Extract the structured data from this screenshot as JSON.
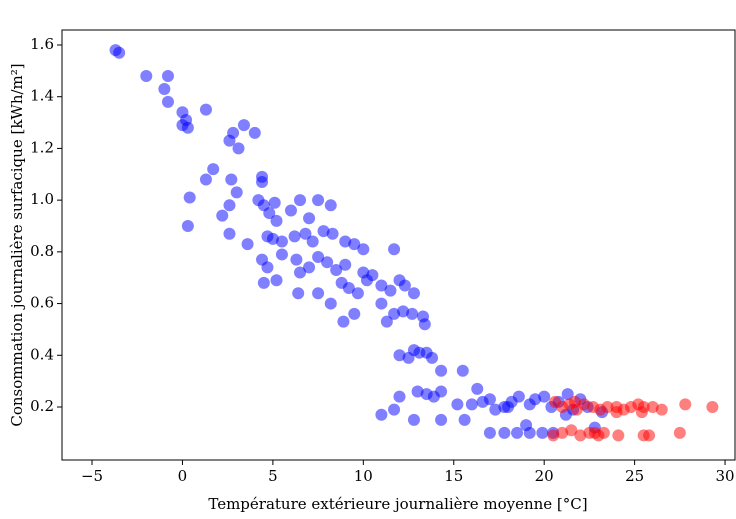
{
  "chart_data": {
    "type": "scatter",
    "xlabel": "Température extérieure journalière moyenne [°C]",
    "ylabel": "Consommation journalière surfacique [kWh/m²]",
    "xlim": [
      -6.66,
      30.55
    ],
    "ylim": [
      -0.005,
      1.658
    ],
    "xticks": [
      {
        "value": -5,
        "label": "−5"
      },
      0,
      5,
      10,
      15,
      20,
      25,
      30
    ],
    "yticks": [
      0.2,
      0.4,
      0.6,
      0.8,
      1.0,
      1.2,
      1.4,
      1.6
    ],
    "alpha": 0.5,
    "series": [
      {
        "color": "#0000ff",
        "x": [
          -3.7,
          -3.5,
          -2,
          -0.8,
          -1,
          -0.8,
          0,
          0.2,
          0,
          0.3,
          1.3,
          3.4,
          2.8,
          4,
          2.6,
          3.1,
          2.7,
          1.3,
          1.7,
          4.4,
          4.4,
          3,
          0.4,
          4.2,
          2.6,
          2.2,
          0.3,
          2.6,
          3.6,
          4.5,
          4.8,
          5.1,
          5.2,
          6,
          6.5,
          7,
          7.5,
          8.2,
          4.7,
          5,
          5.5,
          6.2,
          6.8,
          7.2,
          7.8,
          8.3,
          9,
          9.5,
          10,
          4.4,
          4.7,
          5.5,
          6.3,
          6.5,
          7,
          7.5,
          8,
          8.5,
          9,
          10,
          10.5,
          11.7,
          4.5,
          5.2,
          6.4,
          7.5,
          8.2,
          8.8,
          9.2,
          9.7,
          10.2,
          11,
          11.5,
          12,
          12.3,
          12.8,
          8.9,
          9.5,
          11,
          11.3,
          11.7,
          12.2,
          12.7,
          13.3,
          13.4,
          12,
          12.5,
          12.8,
          13.1,
          13.5,
          13.8,
          14.3,
          15.5,
          13,
          13.5,
          13.9,
          14.3,
          12,
          11.7,
          11,
          12.8,
          14.3,
          15.2,
          15.6,
          16,
          16.3,
          16.6,
          17,
          17.3,
          17.8,
          18.2,
          18.6,
          19.2,
          19.5,
          20,
          20.4,
          20.8,
          17.8,
          18.5,
          19.2,
          19.9,
          20.5,
          19,
          21.3,
          21.6,
          22,
          22.4,
          22.8,
          21.2,
          23.2,
          17,
          18
        ],
        "y": [
          1.58,
          1.57,
          1.48,
          1.48,
          1.43,
          1.38,
          1.34,
          1.31,
          1.29,
          1.28,
          1.35,
          1.29,
          1.26,
          1.26,
          1.23,
          1.2,
          1.08,
          1.08,
          1.12,
          1.09,
          1.07,
          1.03,
          1.01,
          1.0,
          0.98,
          0.94,
          0.9,
          0.87,
          0.83,
          0.98,
          0.95,
          0.99,
          0.92,
          0.96,
          1.0,
          0.93,
          1.0,
          0.98,
          0.86,
          0.85,
          0.84,
          0.86,
          0.87,
          0.84,
          0.88,
          0.87,
          0.84,
          0.83,
          0.81,
          0.77,
          0.74,
          0.79,
          0.77,
          0.72,
          0.74,
          0.78,
          0.76,
          0.73,
          0.75,
          0.72,
          0.71,
          0.81,
          0.68,
          0.69,
          0.64,
          0.64,
          0.6,
          0.68,
          0.66,
          0.64,
          0.69,
          0.67,
          0.65,
          0.69,
          0.67,
          0.64,
          0.53,
          0.56,
          0.6,
          0.53,
          0.56,
          0.57,
          0.56,
          0.55,
          0.52,
          0.4,
          0.39,
          0.42,
          0.41,
          0.41,
          0.39,
          0.34,
          0.34,
          0.26,
          0.25,
          0.24,
          0.26,
          0.24,
          0.19,
          0.17,
          0.15,
          0.15,
          0.21,
          0.15,
          0.21,
          0.27,
          0.22,
          0.23,
          0.19,
          0.2,
          0.22,
          0.24,
          0.21,
          0.23,
          0.24,
          0.2,
          0.22,
          0.1,
          0.1,
          0.1,
          0.1,
          0.1,
          0.13,
          0.25,
          0.19,
          0.23,
          0.2,
          0.12,
          0.17,
          0.18,
          0.1,
          0.2
        ]
      },
      {
        "color": "#ff0000",
        "x": [
          20.6,
          21,
          21.4,
          21.8,
          22.2,
          22.7,
          23.1,
          23.5,
          24,
          24.4,
          24.8,
          25.2,
          25.5,
          26,
          26.5,
          27.8,
          29.3,
          20.5,
          21,
          21.5,
          22,
          22.5,
          23,
          23.3,
          24.1,
          25.5,
          25.8,
          27.5,
          21.7,
          24,
          25.4,
          22.8
        ],
        "y": [
          0.22,
          0.2,
          0.21,
          0.19,
          0.21,
          0.2,
          0.19,
          0.2,
          0.2,
          0.19,
          0.2,
          0.21,
          0.2,
          0.2,
          0.19,
          0.21,
          0.2,
          0.09,
          0.1,
          0.11,
          0.09,
          0.1,
          0.09,
          0.1,
          0.09,
          0.09,
          0.09,
          0.1,
          0.22,
          0.18,
          0.18,
          0.1
        ]
      }
    ]
  }
}
